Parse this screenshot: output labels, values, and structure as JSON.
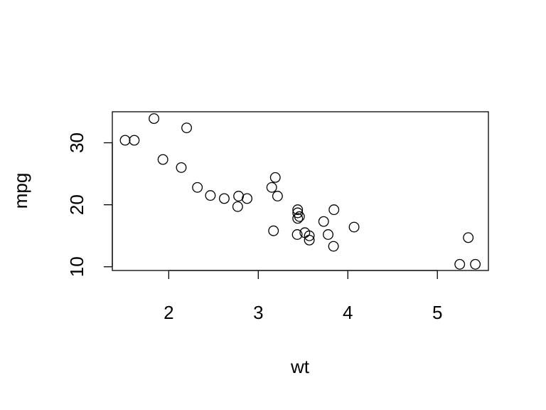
{
  "chart_data": {
    "type": "scatter",
    "title": "",
    "xlabel": "wt",
    "ylabel": "mpg",
    "xlim": [
      1.37,
      5.57
    ],
    "ylim": [
      9.4,
      35.0
    ],
    "xticks": [
      2,
      3,
      4,
      5
    ],
    "yticks": [
      10,
      20,
      30
    ],
    "xtick_labels": [
      "2",
      "3",
      "4",
      "5"
    ],
    "ytick_labels": [
      "10",
      "20",
      "30"
    ],
    "grid": false,
    "legend": "none",
    "marker": "open-circle",
    "points": [
      {
        "x": 2.62,
        "y": 21.0
      },
      {
        "x": 2.875,
        "y": 21.0
      },
      {
        "x": 2.32,
        "y": 22.8
      },
      {
        "x": 3.215,
        "y": 21.4
      },
      {
        "x": 3.44,
        "y": 18.7
      },
      {
        "x": 3.46,
        "y": 18.1
      },
      {
        "x": 3.57,
        "y": 14.3
      },
      {
        "x": 3.19,
        "y": 24.4
      },
      {
        "x": 3.15,
        "y": 22.8
      },
      {
        "x": 3.44,
        "y": 19.2
      },
      {
        "x": 3.44,
        "y": 17.8
      },
      {
        "x": 4.07,
        "y": 16.4
      },
      {
        "x": 3.73,
        "y": 17.3
      },
      {
        "x": 3.78,
        "y": 15.2
      },
      {
        "x": 5.25,
        "y": 10.4
      },
      {
        "x": 5.424,
        "y": 10.4
      },
      {
        "x": 5.345,
        "y": 14.7
      },
      {
        "x": 2.2,
        "y": 32.4
      },
      {
        "x": 1.615,
        "y": 30.4
      },
      {
        "x": 1.835,
        "y": 33.9
      },
      {
        "x": 2.465,
        "y": 21.5
      },
      {
        "x": 3.52,
        "y": 15.5
      },
      {
        "x": 3.435,
        "y": 15.2
      },
      {
        "x": 3.84,
        "y": 13.3
      },
      {
        "x": 3.845,
        "y": 19.2
      },
      {
        "x": 1.935,
        "y": 27.3
      },
      {
        "x": 2.14,
        "y": 26.0
      },
      {
        "x": 1.513,
        "y": 30.4
      },
      {
        "x": 3.17,
        "y": 15.8
      },
      {
        "x": 2.77,
        "y": 19.7
      },
      {
        "x": 3.57,
        "y": 15.0
      },
      {
        "x": 2.78,
        "y": 21.4
      }
    ]
  }
}
